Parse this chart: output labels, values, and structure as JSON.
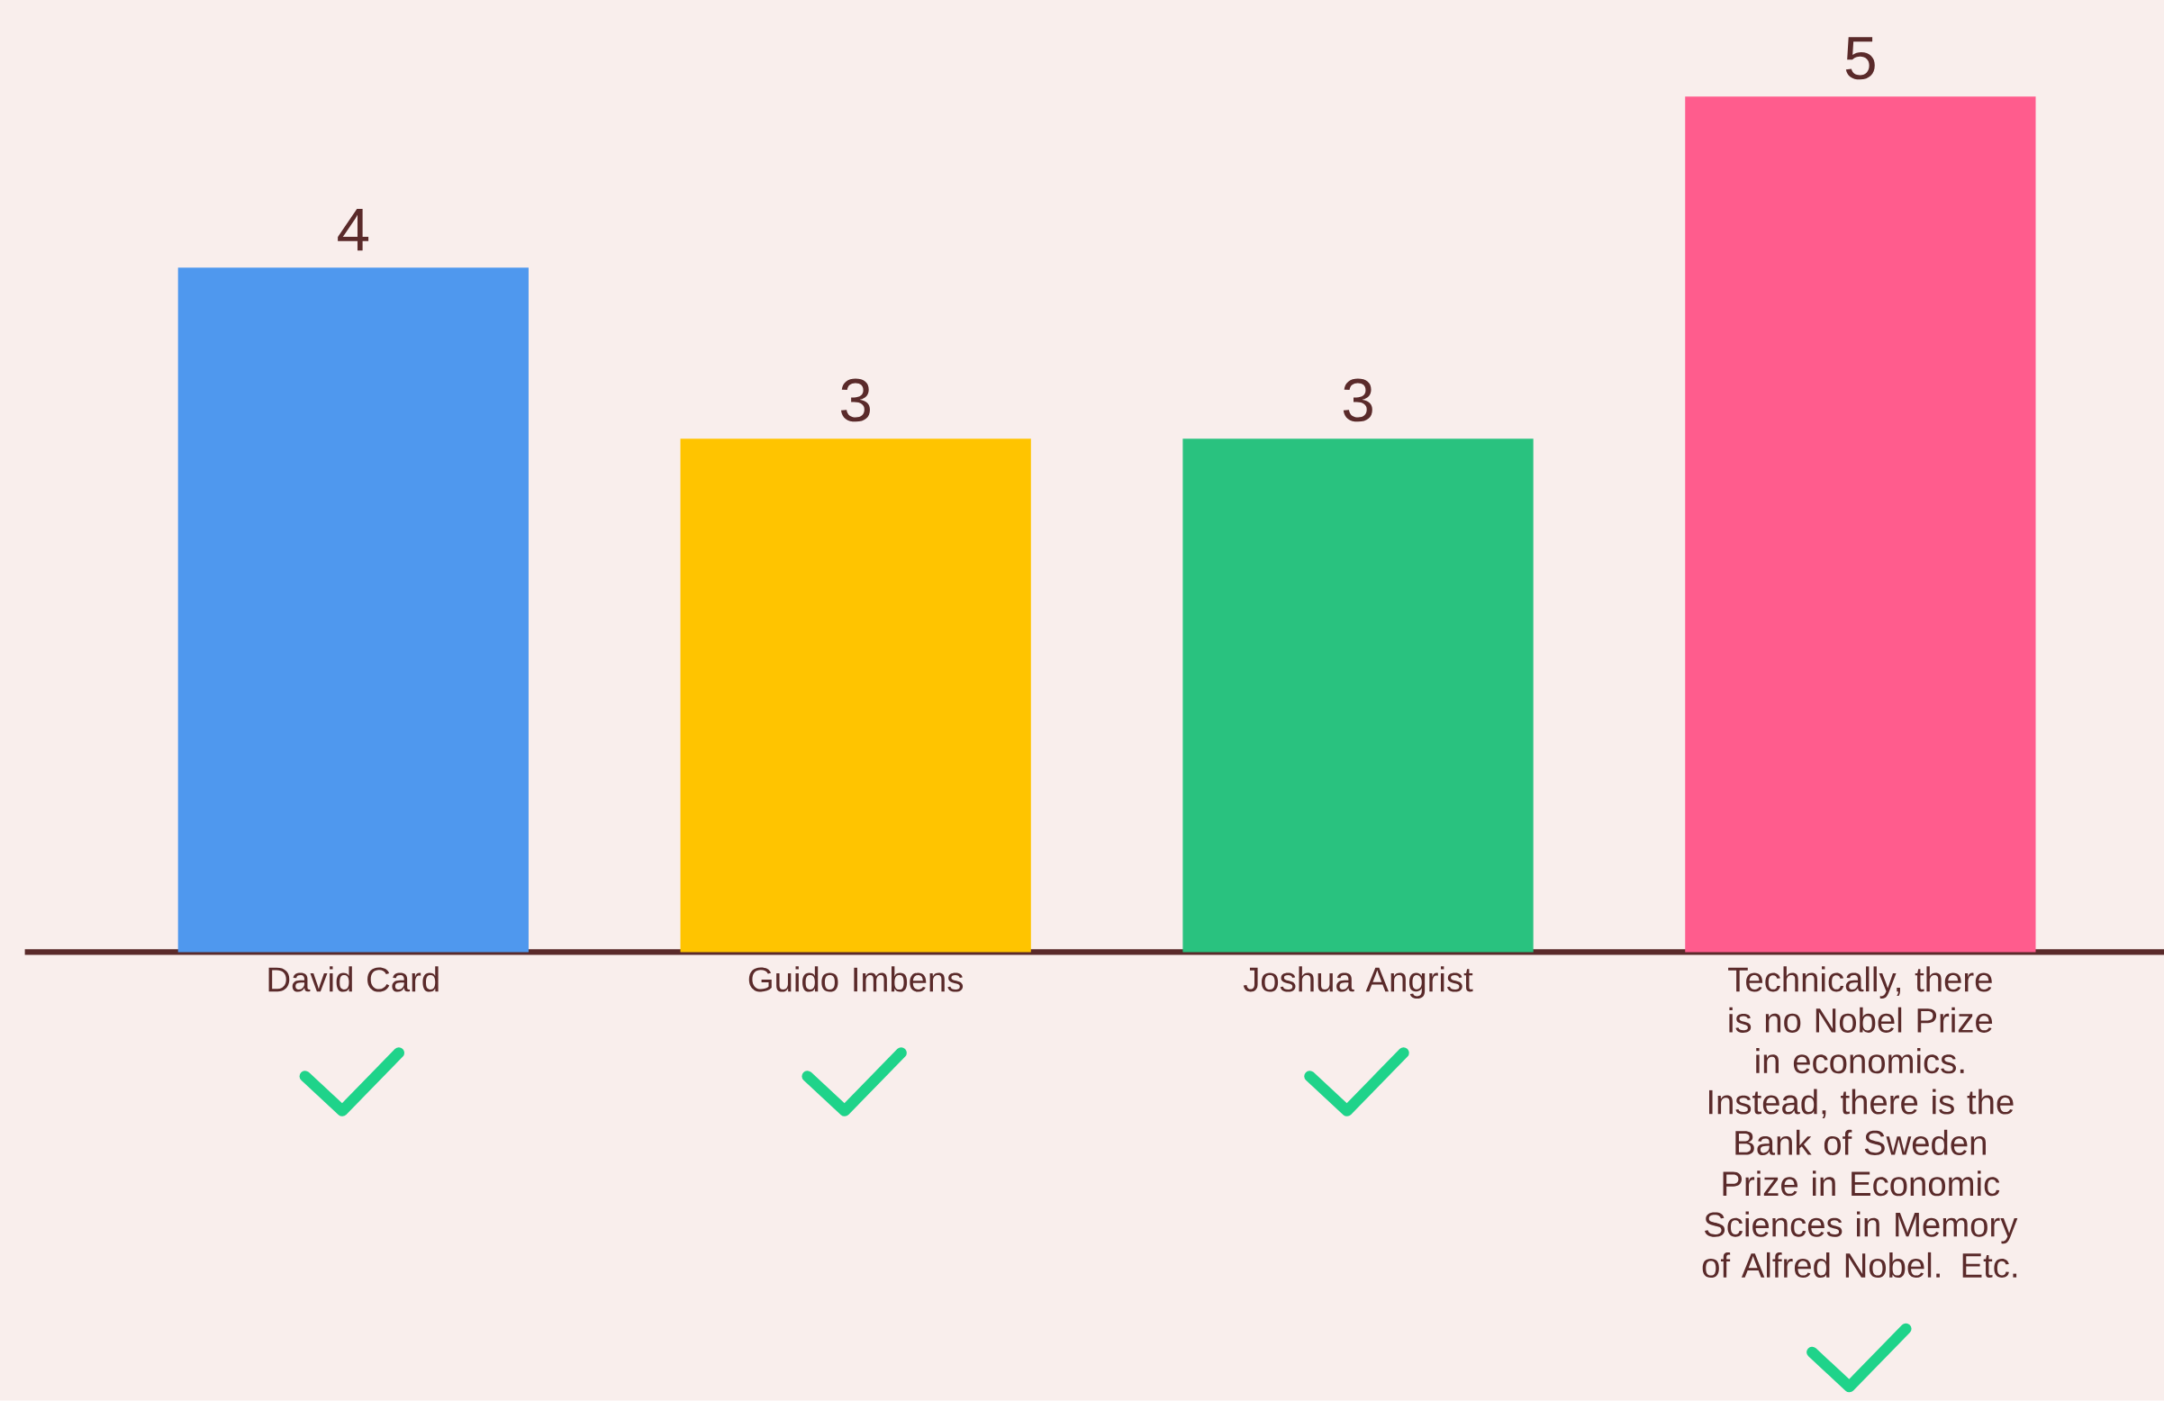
{
  "chart_data": {
    "type": "bar",
    "categories": [
      "David Card",
      "Guido Imbens",
      "Joshua Angrist",
      "Technically, there is no Nobel Prize in economics. Instead, there is the Bank of Sweden Prize in Economic Sciences in Memory of Alfred Nobel. Etc."
    ],
    "values": [
      4,
      3,
      3,
      5
    ],
    "colors": [
      "#4f98ee",
      "#ffc400",
      "#29c27f",
      "#ff5c8d"
    ],
    "data_labels": true
  }
}
